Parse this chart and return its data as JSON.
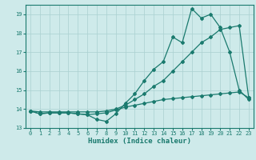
{
  "xlabel": "Humidex (Indice chaleur)",
  "xlim": [
    -0.5,
    23.5
  ],
  "ylim": [
    13,
    19.5
  ],
  "yticks": [
    13,
    14,
    15,
    16,
    17,
    18,
    19
  ],
  "xticks": [
    0,
    1,
    2,
    3,
    4,
    5,
    6,
    7,
    8,
    9,
    10,
    11,
    12,
    13,
    14,
    15,
    16,
    17,
    18,
    19,
    20,
    21,
    22,
    23
  ],
  "bg_color": "#ceeaea",
  "grid_color": "#aad0d0",
  "line_color": "#1a7a6e",
  "series": [
    {
      "x": [
        0,
        1,
        2,
        3,
        4,
        5,
        6,
        7,
        8,
        9,
        10,
        11,
        12,
        13,
        14,
        15,
        16,
        17,
        18,
        19,
        20,
        21,
        22,
        23
      ],
      "y": [
        13.9,
        13.75,
        13.8,
        13.8,
        13.8,
        13.75,
        13.7,
        13.45,
        13.35,
        13.75,
        14.3,
        14.8,
        15.5,
        16.1,
        16.5,
        17.8,
        17.5,
        19.3,
        18.8,
        19.0,
        18.3,
        17.0,
        15.0,
        14.5
      ]
    },
    {
      "x": [
        0,
        1,
        2,
        3,
        4,
        5,
        6,
        7,
        8,
        9,
        10,
        11,
        12,
        13,
        14,
        15,
        16,
        17,
        18,
        19,
        20,
        21,
        22,
        23
      ],
      "y": [
        13.9,
        13.85,
        13.85,
        13.85,
        13.85,
        13.85,
        13.85,
        13.85,
        13.9,
        14.0,
        14.2,
        14.5,
        14.8,
        15.2,
        15.5,
        16.0,
        16.5,
        17.0,
        17.5,
        17.8,
        18.2,
        18.3,
        18.4,
        14.6
      ]
    },
    {
      "x": [
        0,
        1,
        2,
        3,
        4,
        5,
        6,
        7,
        8,
        9,
        10,
        11,
        12,
        13,
        14,
        15,
        16,
        17,
        18,
        19,
        20,
        21,
        22,
        23
      ],
      "y": [
        13.9,
        13.75,
        13.8,
        13.8,
        13.8,
        13.75,
        13.7,
        13.75,
        13.8,
        13.95,
        14.1,
        14.2,
        14.3,
        14.4,
        14.5,
        14.55,
        14.6,
        14.65,
        14.7,
        14.75,
        14.8,
        14.85,
        14.9,
        14.6
      ]
    }
  ],
  "marker": "D",
  "markersize": 2.0,
  "linewidth": 0.9
}
